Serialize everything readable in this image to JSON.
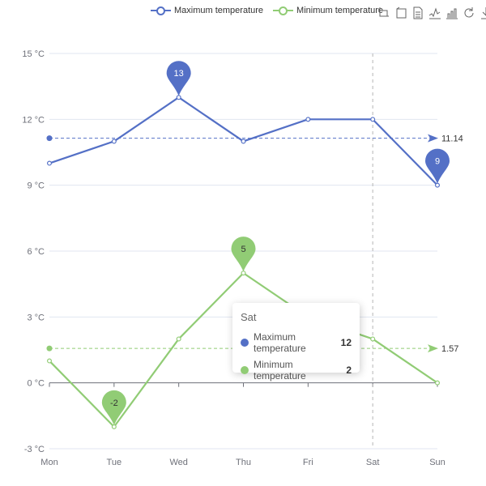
{
  "legend": [
    {
      "name": "Maximum temperature",
      "color": "#5470c6"
    },
    {
      "name": "Minimum temperature",
      "color": "#91cc75"
    }
  ],
  "toolbox": [
    "zoom-icon",
    "zoom-reset-icon",
    "data-view-icon",
    "line-chart-icon",
    "bar-chart-icon",
    "restore-icon",
    "download-icon"
  ],
  "tooltip": {
    "title": "Sat",
    "rows": [
      {
        "name": "Maximum temperature",
        "value": "12",
        "color": "#5470c6"
      },
      {
        "name": "Minimum temperature",
        "value": "2",
        "color": "#91cc75"
      }
    ]
  },
  "chart_data": {
    "type": "line",
    "categories": [
      "Mon",
      "Tue",
      "Wed",
      "Thu",
      "Fri",
      "Sat",
      "Sun"
    ],
    "series": [
      {
        "name": "Maximum temperature",
        "color": "#5470c6",
        "values": [
          10,
          11,
          13,
          11,
          12,
          12,
          9
        ],
        "max_pin": {
          "category": "Wed",
          "label": "13"
        },
        "min_pin": {
          "category": "Sun",
          "label": "9"
        },
        "average": {
          "value": 11.14,
          "label": "11.14"
        }
      },
      {
        "name": "Minimum temperature",
        "color": "#91cc75",
        "values": [
          1,
          -2,
          2,
          5,
          3,
          2,
          0
        ],
        "max_pin": {
          "category": "Thu",
          "label": "5"
        },
        "min_pin": {
          "category": "Tue",
          "label": "-2"
        },
        "average": {
          "value": 1.57,
          "label": "1.57"
        }
      }
    ],
    "y_ticks": [
      -3,
      0,
      3,
      6,
      9,
      12,
      15
    ],
    "y_tick_labels": [
      "-3 °C",
      "0 °C",
      "3 °C",
      "6 °C",
      "9 °C",
      "12 °C",
      "15 °C"
    ],
    "ylim": [
      -3,
      15
    ],
    "highlighted_category": "Sat",
    "grid": true,
    "legend_position": "top"
  }
}
